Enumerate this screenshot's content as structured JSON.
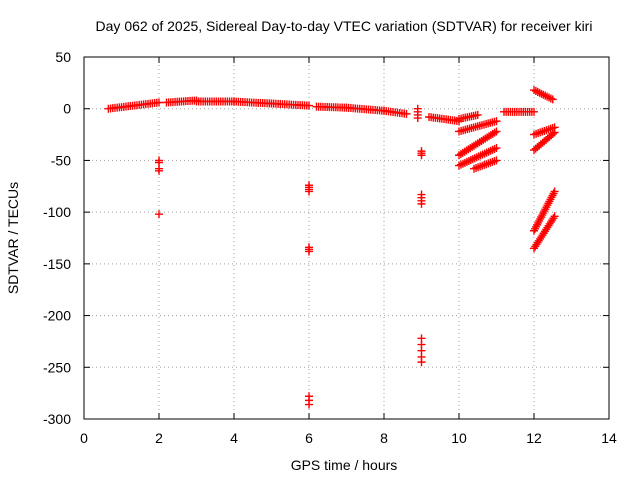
{
  "chart_data": {
    "type": "scatter",
    "title": "Day 062 of 2025, Sidereal Day-to-day VTEC variation (SDTVAR) for receiver kiri",
    "xlabel": "GPS time / hours",
    "ylabel": "SDTVAR / TECUs",
    "xlim": [
      0,
      14
    ],
    "ylim": [
      -300,
      50
    ],
    "xticks": [
      0,
      2,
      4,
      6,
      8,
      10,
      12,
      14
    ],
    "yticks": [
      50,
      0,
      -50,
      -100,
      -150,
      -200,
      -250,
      -300
    ],
    "grid": true,
    "marker": "plus",
    "color": "#ff0000",
    "series": [
      {
        "name": "SDTVAR",
        "segments": [
          {
            "x0": 0.65,
            "y0": 0,
            "x1": 2.0,
            "y1": 6
          },
          {
            "x0": 2.2,
            "y0": 6,
            "x1": 3.0,
            "y1": 8
          },
          {
            "x0": 3.0,
            "y0": 7,
            "x1": 4.0,
            "y1": 7
          },
          {
            "x0": 4.0,
            "y0": 7,
            "x1": 5.0,
            "y1": 5
          },
          {
            "x0": 5.0,
            "y0": 5,
            "x1": 6.0,
            "y1": 3
          },
          {
            "x0": 6.2,
            "y0": 2,
            "x1": 7.0,
            "y1": 1
          },
          {
            "x0": 7.0,
            "y0": 1,
            "x1": 8.0,
            "y1": -2
          },
          {
            "x0": 8.0,
            "y0": -2,
            "x1": 8.6,
            "y1": -5
          },
          {
            "x0": 9.2,
            "y0": -8,
            "x1": 10.0,
            "y1": -12
          },
          {
            "x0": 10.0,
            "y0": -10,
            "x1": 10.5,
            "y1": -6
          },
          {
            "x0": 10.0,
            "y0": -22,
            "x1": 11.0,
            "y1": -12
          },
          {
            "x0": 11.2,
            "y0": -3,
            "x1": 12.0,
            "y1": -3
          },
          {
            "x0": 10.0,
            "y0": -45,
            "x1": 11.0,
            "y1": -22
          },
          {
            "x0": 10.0,
            "y0": -55,
            "x1": 11.0,
            "y1": -38
          },
          {
            "x0": 10.4,
            "y0": -58,
            "x1": 11.0,
            "y1": -50
          },
          {
            "x0": 12.0,
            "y0": 18,
            "x1": 12.5,
            "y1": 9
          },
          {
            "x0": 12.0,
            "y0": -25,
            "x1": 12.55,
            "y1": -18
          },
          {
            "x0": 12.0,
            "y0": -40,
            "x1": 12.55,
            "y1": -23
          },
          {
            "x0": 12.0,
            "y0": -118,
            "x1": 12.55,
            "y1": -80
          },
          {
            "x0": 12.0,
            "y0": -135,
            "x1": 12.55,
            "y1": -104
          }
        ],
        "points": [
          {
            "x": 2.0,
            "y": -50
          },
          {
            "x": 2.0,
            "y": -52
          },
          {
            "x": 2.0,
            "y": -58
          },
          {
            "x": 2.0,
            "y": -60
          },
          {
            "x": 2.0,
            "y": -102
          },
          {
            "x": 6.0,
            "y": -74
          },
          {
            "x": 6.0,
            "y": -76
          },
          {
            "x": 6.0,
            "y": -78
          },
          {
            "x": 6.0,
            "y": -80
          },
          {
            "x": 6.0,
            "y": -134
          },
          {
            "x": 6.0,
            "y": -136
          },
          {
            "x": 6.0,
            "y": -138
          },
          {
            "x": 6.0,
            "y": -278
          },
          {
            "x": 6.0,
            "y": -282
          },
          {
            "x": 6.0,
            "y": -286
          },
          {
            "x": 8.9,
            "y": 0
          },
          {
            "x": 8.9,
            "y": -3
          },
          {
            "x": 8.9,
            "y": -6
          },
          {
            "x": 8.9,
            "y": -9
          },
          {
            "x": 9.0,
            "y": -41
          },
          {
            "x": 9.0,
            "y": -43
          },
          {
            "x": 9.0,
            "y": -45
          },
          {
            "x": 9.0,
            "y": -83
          },
          {
            "x": 9.0,
            "y": -86
          },
          {
            "x": 9.0,
            "y": -89
          },
          {
            "x": 9.0,
            "y": -92
          },
          {
            "x": 9.0,
            "y": -222
          },
          {
            "x": 9.0,
            "y": -228
          },
          {
            "x": 9.0,
            "y": -234
          },
          {
            "x": 9.0,
            "y": -240
          },
          {
            "x": 9.0,
            "y": -245
          }
        ]
      }
    ]
  }
}
